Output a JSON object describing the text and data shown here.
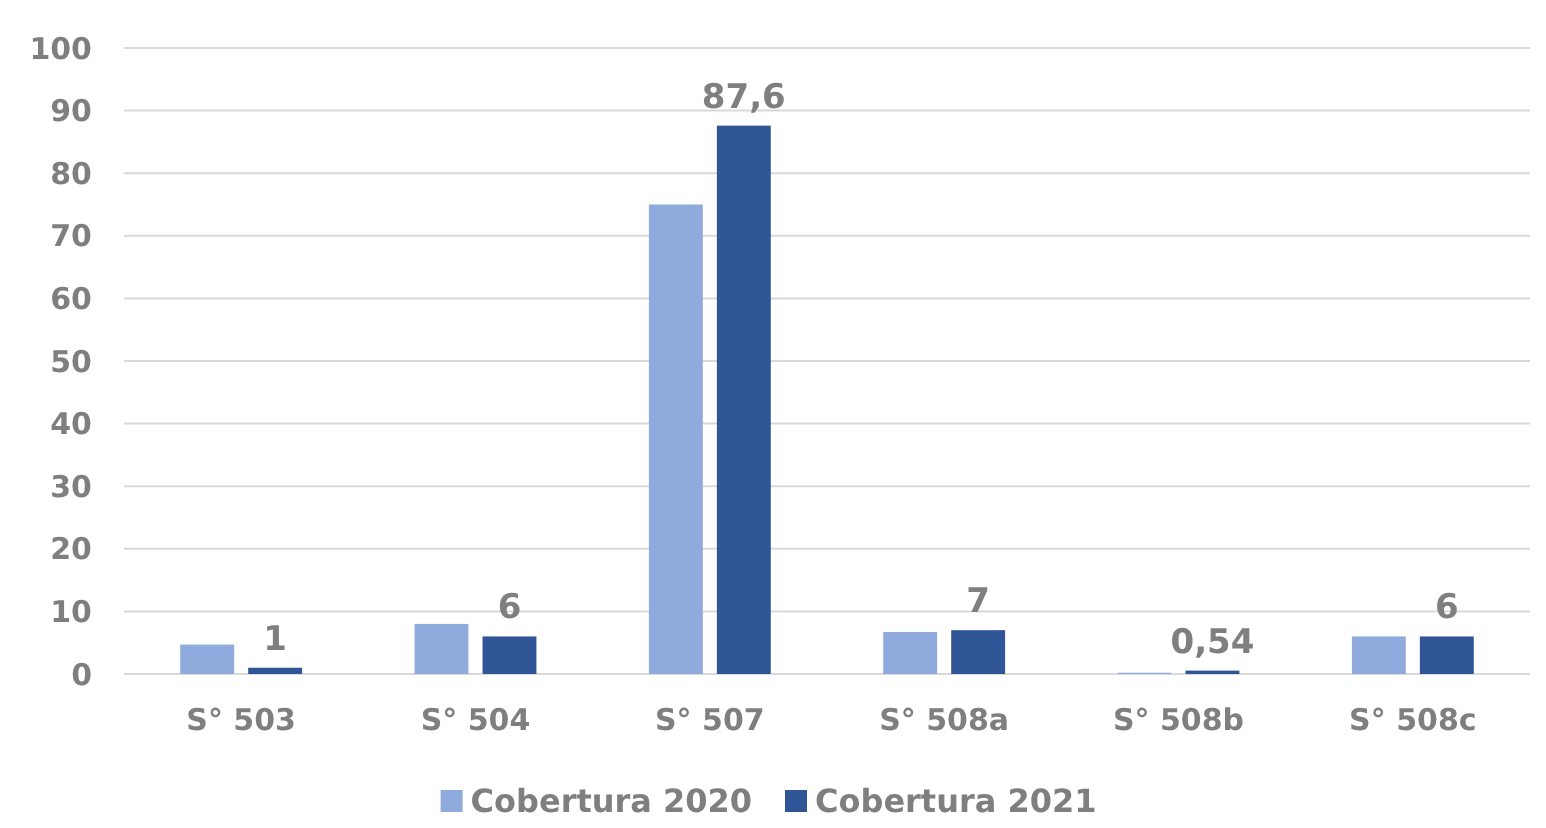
{
  "chart_data": {
    "type": "bar",
    "categories": [
      "S° 503",
      "S° 504",
      "S° 507",
      "S° 508a",
      "S° 508b",
      "S° 508c"
    ],
    "series": [
      {
        "name": "Cobertura 2020",
        "color": "#8faadc",
        "values": [
          4.7,
          8,
          75,
          6.7,
          0.2,
          6
        ]
      },
      {
        "name": "Cobertura 2021",
        "color": "#2f5597",
        "values": [
          1,
          6,
          87.6,
          7,
          0.54,
          6
        ],
        "value_labels": [
          "1",
          "6",
          "87,6",
          "7",
          "0,54",
          "6"
        ]
      }
    ],
    "ylim": [
      0,
      100
    ],
    "yticks": [
      0,
      10,
      20,
      30,
      40,
      50,
      60,
      70,
      80,
      90,
      100
    ],
    "grid": "y",
    "legend": "bottom"
  }
}
